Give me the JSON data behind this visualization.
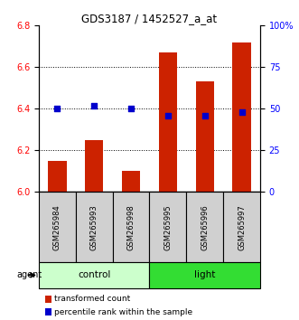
{
  "title": "GDS3187 / 1452527_a_at",
  "samples": [
    "GSM265984",
    "GSM265993",
    "GSM265998",
    "GSM265995",
    "GSM265996",
    "GSM265997"
  ],
  "transformed_count": [
    6.15,
    6.25,
    6.1,
    6.67,
    6.53,
    6.72
  ],
  "percentile_rank": [
    50,
    52,
    50,
    46,
    46,
    48
  ],
  "groups": [
    {
      "label": "control",
      "indices": [
        0,
        1,
        2
      ],
      "color": "#ccffcc"
    },
    {
      "label": "light",
      "indices": [
        3,
        4,
        5
      ],
      "color": "#33dd33"
    }
  ],
  "ylim_left": [
    6.0,
    6.8
  ],
  "ylim_right": [
    0,
    100
  ],
  "yticks_left": [
    6.0,
    6.2,
    6.4,
    6.6,
    6.8
  ],
  "yticks_right": [
    0,
    25,
    50,
    75,
    100
  ],
  "ytick_right_labels": [
    "0",
    "25",
    "50",
    "75",
    "100%"
  ],
  "bar_color": "#cc2200",
  "dot_color": "#0000cc",
  "agent_label": "agent",
  "legend_items": [
    {
      "label": "transformed count",
      "color": "#cc2200"
    },
    {
      "label": "percentile rank within the sample",
      "color": "#0000cc"
    }
  ]
}
